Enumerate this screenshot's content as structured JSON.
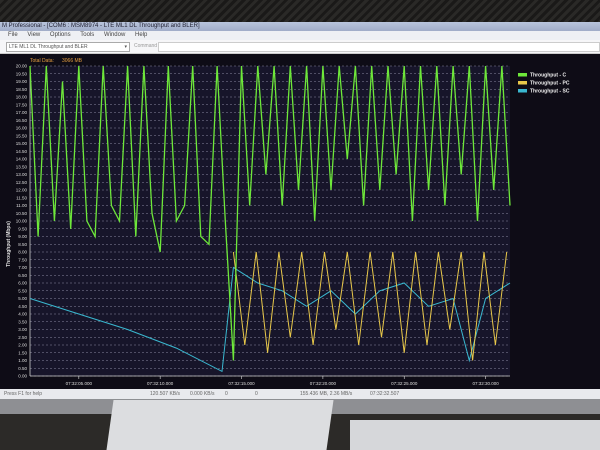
{
  "window": {
    "title": "M Professional - [COM6 : MSM8974 - LTE ML1 DL Throughput and BLER]",
    "menu": [
      "File",
      "View",
      "Options",
      "Tools",
      "Window",
      "Help"
    ],
    "view_select": "LTE ML1 DL Throughput and BLER",
    "command_label": "Command"
  },
  "header": {
    "total_label": "Total Data:",
    "total_value": "3066 MB"
  },
  "status_bar": {
    "help": "Press F1 for help",
    "rate1": "120.507 KB/s",
    "rate2": "0.000 KB/s",
    "v1": "0",
    "v2": "0",
    "total": "155.436 MB, 2.36 MB/s",
    "time": "07:32:32.507"
  },
  "colors": {
    "green": "#6ee83a",
    "yellow": "#e8c84a",
    "cyan": "#3ab8d0",
    "plot_bg": "#17152a"
  },
  "chart_data": {
    "type": "line",
    "ylabel": "Throughput (Mbps)",
    "xlabel": "",
    "ylim": [
      0,
      20
    ],
    "y_ticks": [
      "0.00",
      "0.50",
      "1.00",
      "1.50",
      "2.00",
      "2.50",
      "3.00",
      "3.50",
      "4.00",
      "4.50",
      "5.00",
      "5.50",
      "6.00",
      "6.50",
      "7.00",
      "7.50",
      "8.00",
      "8.50",
      "9.00",
      "9.50",
      "10.00",
      "10.50",
      "11.00",
      "11.50",
      "12.00",
      "12.50",
      "13.00",
      "13.50",
      "14.00",
      "14.50",
      "15.00",
      "15.50",
      "16.00",
      "16.50",
      "17.00",
      "17.50",
      "18.00",
      "18.50",
      "19.00",
      "19.50",
      "20.00"
    ],
    "xlim": [
      "07:32:02.000",
      "07:32:31.500"
    ],
    "x_ticks": [
      "07:32:05.000",
      "07:32:10.000",
      "07:32:15.000",
      "07:32:20.000",
      "07:32:25.000",
      "07:32:30.000"
    ],
    "grid": true,
    "legend_position": "right",
    "series": [
      {
        "name": "Throughput - C",
        "color": "#6ee83a",
        "points": [
          [
            "07:32:02.0",
            20
          ],
          [
            "07:32:02.5",
            9
          ],
          [
            "07:32:03.0",
            20
          ],
          [
            "07:32:03.5",
            10
          ],
          [
            "07:32:04.0",
            19
          ],
          [
            "07:32:04.5",
            9.5
          ],
          [
            "07:32:05.0",
            20
          ],
          [
            "07:32:05.5",
            10
          ],
          [
            "07:32:06.0",
            9
          ],
          [
            "07:32:06.5",
            20
          ],
          [
            "07:32:07.0",
            11
          ],
          [
            "07:32:07.5",
            10
          ],
          [
            "07:32:08.0",
            20
          ],
          [
            "07:32:08.5",
            9
          ],
          [
            "07:32:09.0",
            20
          ],
          [
            "07:32:09.5",
            10.5
          ],
          [
            "07:32:10.0",
            8
          ],
          [
            "07:32:10.5",
            20
          ],
          [
            "07:32:11.0",
            10
          ],
          [
            "07:32:11.5",
            11
          ],
          [
            "07:32:12.0",
            20
          ],
          [
            "07:32:12.5",
            9
          ],
          [
            "07:32:13.0",
            8.5
          ],
          [
            "07:32:13.5",
            20
          ],
          [
            "07:32:14.0",
            10
          ],
          [
            "07:32:14.5",
            1
          ],
          [
            "07:32:15.0",
            20
          ],
          [
            "07:32:15.5",
            11
          ],
          [
            "07:32:16.0",
            20
          ],
          [
            "07:32:16.5",
            13
          ],
          [
            "07:32:17.0",
            20
          ],
          [
            "07:32:17.5",
            11
          ],
          [
            "07:32:18.0",
            20
          ],
          [
            "07:32:18.5",
            12
          ],
          [
            "07:32:19.0",
            20
          ],
          [
            "07:32:19.5",
            10
          ],
          [
            "07:32:20.0",
            20
          ],
          [
            "07:32:20.5",
            12
          ],
          [
            "07:32:21.0",
            20
          ],
          [
            "07:32:21.5",
            14
          ],
          [
            "07:32:22.0",
            20
          ],
          [
            "07:32:22.5",
            11
          ],
          [
            "07:32:23.0",
            20
          ],
          [
            "07:32:23.5",
            12
          ],
          [
            "07:32:24.0",
            20
          ],
          [
            "07:32:24.5",
            13
          ],
          [
            "07:32:25.0",
            20
          ],
          [
            "07:32:25.5",
            10
          ],
          [
            "07:32:26.0",
            20
          ],
          [
            "07:32:26.5",
            12
          ],
          [
            "07:32:27.0",
            20
          ],
          [
            "07:32:27.5",
            11
          ],
          [
            "07:32:28.0",
            20
          ],
          [
            "07:32:28.5",
            13
          ],
          [
            "07:32:29.0",
            20
          ],
          [
            "07:32:29.5",
            10
          ],
          [
            "07:32:30.0",
            20
          ],
          [
            "07:32:30.5",
            12
          ],
          [
            "07:32:31.0",
            20
          ],
          [
            "07:32:31.5",
            11
          ]
        ]
      },
      {
        "name": "Throughput - PC",
        "color": "#e8c84a",
        "points": [
          [
            "07:32:14.5",
            8
          ],
          [
            "07:32:15.2",
            2
          ],
          [
            "07:32:15.9",
            8
          ],
          [
            "07:32:16.6",
            1.5
          ],
          [
            "07:32:17.3",
            8
          ],
          [
            "07:32:18.0",
            2.5
          ],
          [
            "07:32:18.7",
            8
          ],
          [
            "07:32:19.4",
            2
          ],
          [
            "07:32:20.1",
            8
          ],
          [
            "07:32:20.8",
            3
          ],
          [
            "07:32:21.5",
            8
          ],
          [
            "07:32:22.2",
            2
          ],
          [
            "07:32:22.9",
            8
          ],
          [
            "07:32:23.6",
            2.5
          ],
          [
            "07:32:24.3",
            8
          ],
          [
            "07:32:25.0",
            1.5
          ],
          [
            "07:32:25.7",
            8
          ],
          [
            "07:32:26.4",
            2
          ],
          [
            "07:32:27.1",
            8
          ],
          [
            "07:32:27.8",
            3
          ],
          [
            "07:32:28.5",
            8
          ],
          [
            "07:32:29.2",
            1
          ],
          [
            "07:32:29.9",
            8
          ],
          [
            "07:32:30.6",
            2
          ],
          [
            "07:32:31.3",
            8
          ]
        ]
      },
      {
        "name": "Throughput - SC",
        "color": "#3ab8d0",
        "points": [
          [
            "07:32:02.0",
            5
          ],
          [
            "07:32:05.0",
            4
          ],
          [
            "07:32:08.0",
            3
          ],
          [
            "07:32:11.0",
            1.8
          ],
          [
            "07:32:13.8",
            0.3
          ],
          [
            "07:32:14.5",
            7
          ],
          [
            "07:32:16.0",
            6
          ],
          [
            "07:32:17.5",
            5.5
          ],
          [
            "07:32:19.0",
            4.5
          ],
          [
            "07:32:20.5",
            5.5
          ],
          [
            "07:32:22.0",
            4
          ],
          [
            "07:32:23.5",
            5.5
          ],
          [
            "07:32:25.0",
            6
          ],
          [
            "07:32:26.5",
            4.5
          ],
          [
            "07:32:28.0",
            5
          ],
          [
            "07:32:29.0",
            1
          ],
          [
            "07:32:30.0",
            5
          ],
          [
            "07:32:31.5",
            6
          ]
        ]
      }
    ]
  }
}
